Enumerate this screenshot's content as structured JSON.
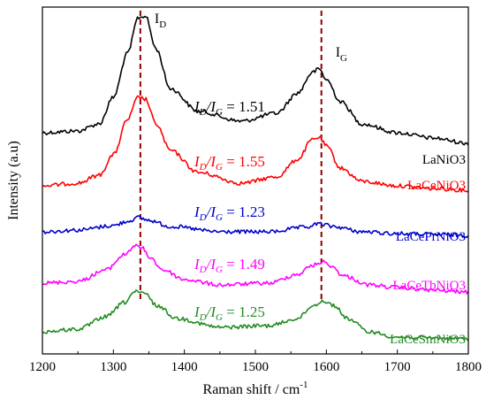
{
  "chart_data": {
    "type": "line",
    "title": "",
    "xlabel": "Raman shift / cm",
    "xlabel_superscript": "-1",
    "ylabel": "Intensity (a.u)",
    "xlim": [
      1200,
      1800
    ],
    "x_ticks": [
      "1200",
      "1300",
      "1400",
      "1500",
      "1600",
      "1700",
      "1800"
    ],
    "y_ticks_shown": false,
    "grid": false,
    "legend": "none",
    "reference_lines": [
      {
        "x": 1338,
        "style": "dashed",
        "color": "#8b0000",
        "label_main": "I",
        "label_sub": "D"
      },
      {
        "x": 1593,
        "style": "dashed",
        "color": "#8b0000",
        "label_main": "I",
        "label_sub": "G"
      }
    ],
    "series": [
      {
        "name": "LaNiO3",
        "name_main": "LaNiO",
        "name_sub": "3",
        "color": "#000000",
        "ratio_value": "1.51",
        "x": [
          1200,
          1250,
          1280,
          1300,
          1320,
          1335,
          1345,
          1360,
          1380,
          1420,
          1480,
          1530,
          1560,
          1580,
          1590,
          1600,
          1620,
          1650,
          1700,
          1750,
          1800
        ],
        "offset": [
          150,
          148,
          140,
          110,
          60,
          20,
          18,
          55,
          100,
          126,
          137,
          128,
          105,
          82,
          78,
          90,
          115,
          140,
          150,
          156,
          162
        ]
      },
      {
        "name": "LaCeNiO3",
        "name_main": "LaCeNiO",
        "name_sub": "3",
        "color": "#ff0000",
        "ratio_value": "1.55",
        "x": [
          1200,
          1250,
          1280,
          1300,
          1320,
          1335,
          1345,
          1360,
          1380,
          1420,
          1480,
          1530,
          1560,
          1580,
          1590,
          1600,
          1620,
          1650,
          1700,
          1750,
          1800
        ],
        "offset": [
          210,
          207,
          198,
          175,
          135,
          110,
          112,
          140,
          170,
          195,
          207,
          200,
          180,
          158,
          155,
          165,
          190,
          205,
          210,
          213,
          215
        ]
      },
      {
        "name": "LaCePrNiO3",
        "name_main": "LaCePrNiO",
        "name_sub": "3",
        "color": "#0000cc",
        "ratio_value": "1.23",
        "x": [
          1200,
          1250,
          1300,
          1320,
          1335,
          1350,
          1380,
          1450,
          1520,
          1570,
          1590,
          1610,
          1650,
          1700,
          1750,
          1800
        ],
        "offset": [
          262,
          260,
          255,
          250,
          246,
          249,
          256,
          262,
          262,
          257,
          253,
          256,
          262,
          264,
          265,
          266
        ]
      },
      {
        "name": "LaCeTbNiO3",
        "name_main": "LaCeTbNiO",
        "name_sub": "3",
        "color": "#ff00ff",
        "ratio_value": "1.49",
        "x": [
          1200,
          1250,
          1290,
          1315,
          1330,
          1340,
          1350,
          1370,
          1400,
          1450,
          1520,
          1560,
          1580,
          1595,
          1605,
          1625,
          1660,
          1700,
          1750,
          1800
        ],
        "offset": [
          320,
          318,
          305,
          288,
          278,
          280,
          290,
          305,
          316,
          322,
          320,
          310,
          300,
          296,
          300,
          312,
          322,
          325,
          328,
          330
        ]
      },
      {
        "name": "LaCeSmNiO3",
        "name_main": "LaCeSmNiO",
        "name_sub": "3",
        "color": "#228b22",
        "ratio_value": "1.25",
        "x": [
          1200,
          1250,
          1290,
          1315,
          1330,
          1345,
          1360,
          1390,
          1450,
          1520,
          1560,
          1580,
          1595,
          1610,
          1630,
          1660,
          1700,
          1750,
          1800
        ],
        "offset": [
          375,
          372,
          358,
          342,
          330,
          332,
          345,
          360,
          370,
          368,
          360,
          346,
          340,
          345,
          360,
          375,
          381,
          382,
          383
        ]
      }
    ]
  }
}
